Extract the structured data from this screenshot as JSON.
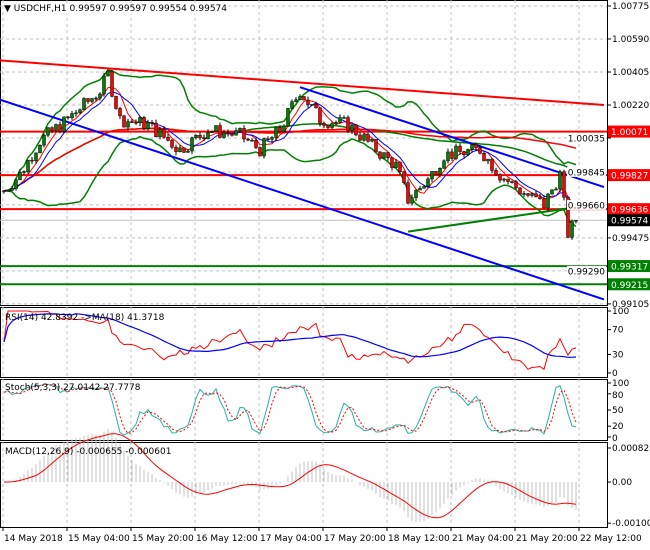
{
  "header": {
    "symbol": "USDCHF,H1",
    "open": "0.99597",
    "high": "0.99597",
    "low": "0.99554",
    "close": "0.99574"
  },
  "chart_data": {
    "type": "candlestick",
    "ylim": [
      0.99105,
      1.00775
    ],
    "price_ticks": [
      "1.00775",
      "1.00590",
      "1.00405",
      "1.00220",
      "1.00035",
      "0.99845",
      "0.99660",
      "0.99475",
      "0.99290",
      "0.99105"
    ],
    "time_ticks": [
      "14 May 2018",
      "15 May 04:00",
      "15 May 20:00",
      "16 May 12:00",
      "17 May 04:00",
      "17 May 20:00",
      "18 May 12:00",
      "21 May 04:00",
      "21 May 20:00",
      "22 May 12:00"
    ],
    "price_path": [
      [
        "14 May 13:00",
        0.9974
      ],
      [
        "14 May 17:00",
        0.9983
      ],
      [
        "14 May 22:00",
        1.0002
      ],
      [
        "15 May 05:00",
        1.0014
      ],
      [
        "15 May 13:00",
        1.003
      ],
      [
        "15 May 15:00",
        1.0039
      ],
      [
        "15 May 18:00",
        1.0014
      ],
      [
        "16 May 01:00",
        1.0011
      ],
      [
        "16 May 09:00",
        0.9997
      ],
      [
        "16 May 16:00",
        1.0008
      ],
      [
        "17 May 00:00",
        1.0005
      ],
      [
        "17 May 05:00",
        0.9997
      ],
      [
        "17 May 10:00",
        1.0008
      ],
      [
        "17 May 15:00",
        1.003
      ],
      [
        "17 May 20:00",
        1.0014
      ],
      [
        "18 May 03:00",
        1.0011
      ],
      [
        "18 May 10:00",
        0.9997
      ],
      [
        "18 May 15:00",
        0.9988
      ],
      [
        "18 May 18:00",
        0.9969
      ],
      [
        "18 May 23:00",
        0.998
      ],
      [
        "21 May 03:00",
        0.9994
      ],
      [
        "21 May 12:00",
        0.9997
      ],
      [
        "21 May 17:00",
        0.9983
      ],
      [
        "21 May 22:00",
        0.9974
      ],
      [
        "22 May 04:00",
        0.9966
      ],
      [
        "22 May 08:00",
        0.9983
      ],
      [
        "22 May 10:00",
        0.995
      ],
      [
        "22 May 12:00",
        0.99574
      ]
    ],
    "levels": [
      {
        "label": "1.00071",
        "price": 1.00071,
        "color": "#ff0000"
      },
      {
        "label": "0.99827",
        "price": 0.99827,
        "color": "#ff0000"
      },
      {
        "label": "0.99636",
        "price": 0.99636,
        "color": "#ff0000"
      },
      {
        "label": "0.99317",
        "price": 0.99317,
        "color": "#008000"
      },
      {
        "label": "0.99215",
        "price": 0.99215,
        "color": "#008000"
      }
    ],
    "current_price": {
      "label": "0.99574",
      "price": 0.99574,
      "color": "#000000"
    },
    "trendlines": [
      {
        "color": "#ff0000",
        "from": [
          "14 May 12:00",
          1.0047
        ],
        "to": [
          "22 May 19:00",
          1.0022
        ]
      },
      {
        "color": "#0000ff",
        "from": [
          "14 May 12:00",
          1.0025
        ],
        "to": [
          "22 May 19:00",
          0.9913
        ]
      },
      {
        "color": "#0000ff",
        "from": [
          "17 May 15:00",
          1.0032
        ],
        "to": [
          "22 May 19:00",
          0.9976
        ]
      },
      {
        "color": "#008000",
        "from": [
          "18 May 18:00",
          0.9951
        ],
        "to": [
          "22 May 19:00",
          0.9967
        ]
      }
    ],
    "indicators": {
      "rsi": {
        "label": "RSI(14) 42.8392  ->MA(18) 41.3718",
        "ticks": [
          "100",
          "70",
          "30",
          "0"
        ]
      },
      "stoch": {
        "label": "Stoch(5,3,3) 27.0142 27.7778",
        "ticks": [
          "100",
          "80",
          "50",
          "20",
          "0"
        ]
      },
      "macd": {
        "label": "MACD(12,26,9) -0.000655 -0.000601",
        "ticks": [
          "0.000828",
          "0.00",
          "-0.001003"
        ]
      }
    },
    "colors": {
      "bull": "#008000",
      "bear": "#ff0000",
      "bollinger": "#008000",
      "ma_fast": "#ff0000",
      "ma_slow": "#0000ff",
      "grid": "#c0c0c0"
    }
  }
}
